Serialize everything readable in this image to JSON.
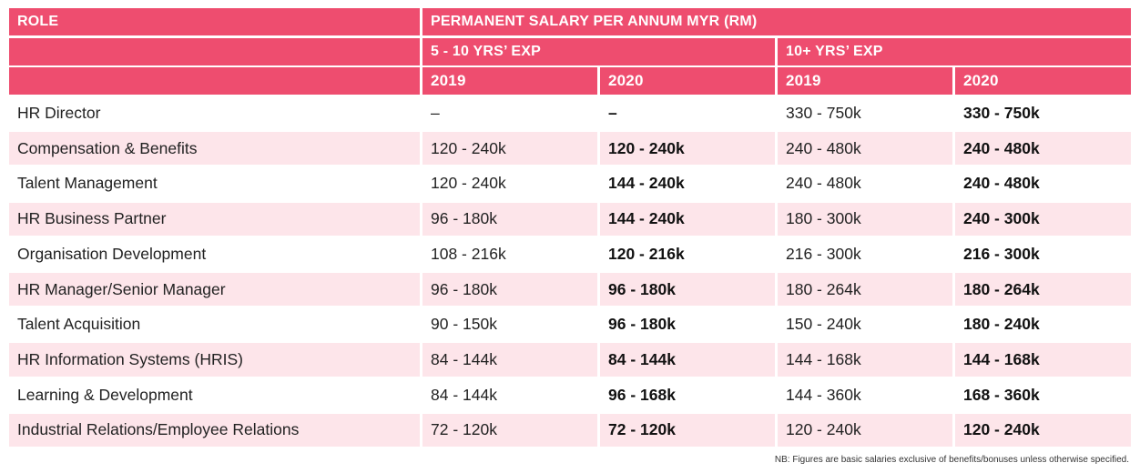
{
  "headers": {
    "role": "ROLE",
    "salary": "PERMANENT SALARY PER ANNUM MYR (RM)",
    "exp_5_10": "5 - 10 YRS’ EXP",
    "exp_10_plus": "10+ YRS’ EXP",
    "years": [
      "2019",
      "2020",
      "2019",
      "2020"
    ]
  },
  "rows": [
    {
      "role": "HR Director",
      "v": [
        "–",
        "–",
        "330 - 750k",
        "330 - 750k"
      ]
    },
    {
      "role": "Compensation & Benefits",
      "v": [
        "120 - 240k",
        "120 - 240k",
        "240 - 480k",
        "240 - 480k"
      ]
    },
    {
      "role": "Talent Management",
      "v": [
        "120 - 240k",
        "144 - 240k",
        "240 - 480k",
        "240 - 480k"
      ]
    },
    {
      "role": "HR Business Partner",
      "v": [
        "96 - 180k",
        "144 - 240k",
        "180 - 300k",
        "240 - 300k"
      ]
    },
    {
      "role": "Organisation Development",
      "v": [
        "108 - 216k",
        "120 - 216k",
        "216 - 300k",
        "216 - 300k"
      ]
    },
    {
      "role": "HR Manager/Senior Manager",
      "v": [
        "96 - 180k",
        "96 - 180k",
        "180 - 264k",
        "180 - 264k"
      ]
    },
    {
      "role": "Talent Acquisition",
      "v": [
        "90 - 150k",
        "96 - 180k",
        "150 - 240k",
        "180 - 240k"
      ]
    },
    {
      "role": "HR Information Systems (HRIS)",
      "v": [
        "84 - 144k",
        "84 - 144k",
        "144 - 168k",
        "144 - 168k"
      ]
    },
    {
      "role": "Learning & Development",
      "v": [
        "84 - 144k",
        "96 - 168k",
        "144 - 360k",
        "168 - 360k"
      ]
    },
    {
      "role": "Industrial Relations/Employee Relations",
      "v": [
        "72 - 120k",
        "72 - 120k",
        "120 - 240k",
        "120 - 240k"
      ]
    }
  ],
  "note": "NB: Figures are basic salaries exclusive of benefits/bonuses unless otherwise specified.",
  "colors": {
    "header": "#ee4d6f",
    "stripe": "#fde5ea"
  }
}
